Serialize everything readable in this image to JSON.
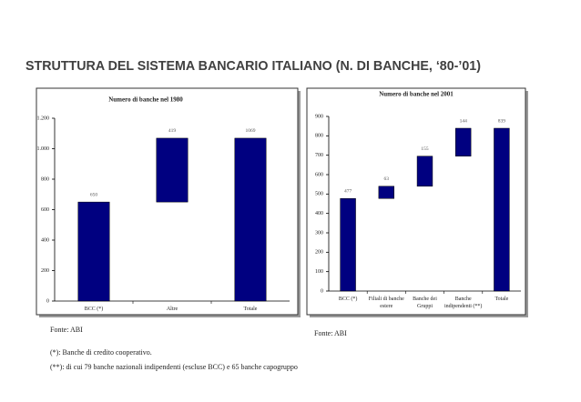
{
  "title": "STRUTTURA DEL SISTEMA BANCARIO ITALIANO (N. DI BANCHE, ‘80-’01)",
  "notes": [
    "(*): Banche di credito cooperativo.",
    "(**): di cui 79 banche nazionali indipendenti (escluse BCC) e 65 banche capogruppo"
  ],
  "chart_data": [
    {
      "type": "waterfall",
      "title": "Numero di banche nel 1980",
      "source": "Fonte: ABI",
      "categories": [
        "BCC (*)",
        "Altre",
        "Totale"
      ],
      "values": [
        650,
        419,
        1069
      ],
      "color": "#000080",
      "ylim": [
        0,
        1200
      ],
      "yticks": [
        0,
        200,
        400,
        600,
        800,
        {
          "value": 1000,
          "label": "1.000"
        },
        {
          "value": 1200,
          "label": "1.200"
        }
      ]
    },
    {
      "type": "waterfall",
      "title": "Numero di banche nel 2001",
      "source": "Fonte: ABI",
      "categories": [
        "BCC (*)",
        "Filiali di banche estere",
        "Banche dei Gruppi",
        "Banche indipendenti (**)",
        "Totale"
      ],
      "values": [
        477,
        63,
        155,
        144,
        839
      ],
      "color": "#000080",
      "ylim": [
        0,
        900
      ],
      "yticks": [
        0,
        100,
        200,
        300,
        400,
        500,
        600,
        700,
        800,
        900
      ]
    }
  ]
}
